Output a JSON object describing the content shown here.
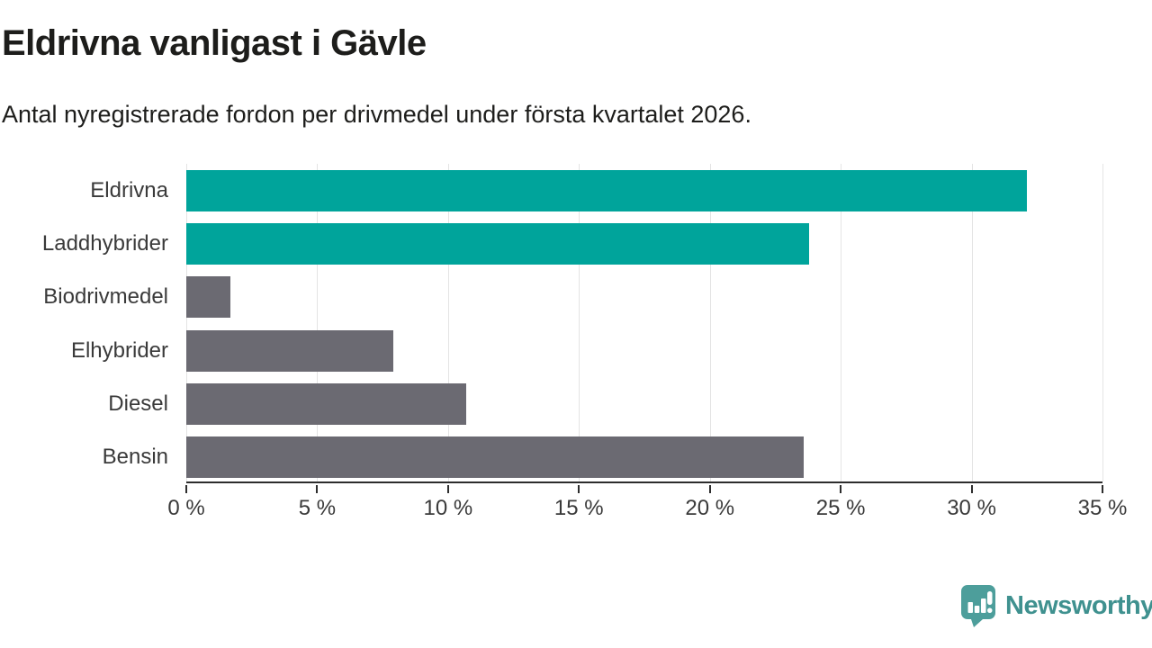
{
  "header": {
    "title": "Eldrivna vanligast i Gävle",
    "subtitle": "Antal nyregistrerade fordon per drivmedel under första kvartalet 2026."
  },
  "chart_data": {
    "type": "bar",
    "orientation": "horizontal",
    "categories": [
      "Eldrivna",
      "Laddhybrider",
      "Biodrivmedel",
      "Elhybrider",
      "Diesel",
      "Bensin"
    ],
    "values": [
      32.1,
      23.8,
      1.7,
      7.9,
      10.7,
      23.6
    ],
    "unit": "%",
    "bar_colors": [
      "#00a49b",
      "#00a49b",
      "#6b6a72",
      "#6b6a72",
      "#6b6a72",
      "#6b6a72"
    ],
    "highlight_color": "#00a49b",
    "default_color": "#6b6a72",
    "xlim": [
      0,
      35
    ],
    "x_ticks": [
      0,
      5,
      10,
      15,
      20,
      25,
      30,
      35
    ],
    "x_tick_labels": [
      "0 %",
      "5 %",
      "10 %",
      "15 %",
      "20 %",
      "25 %",
      "30 %",
      "35 %"
    ],
    "grid": true,
    "legend": false,
    "title": "Eldrivna vanligast i Gävle",
    "xlabel": "",
    "ylabel": ""
  },
  "footer": {
    "brand": "Newsworthy",
    "brand_color": "#3f918f",
    "logo_icon": "speech-bubble-bar-chart-icon",
    "logo_icon_color": "#4d9e9b"
  }
}
